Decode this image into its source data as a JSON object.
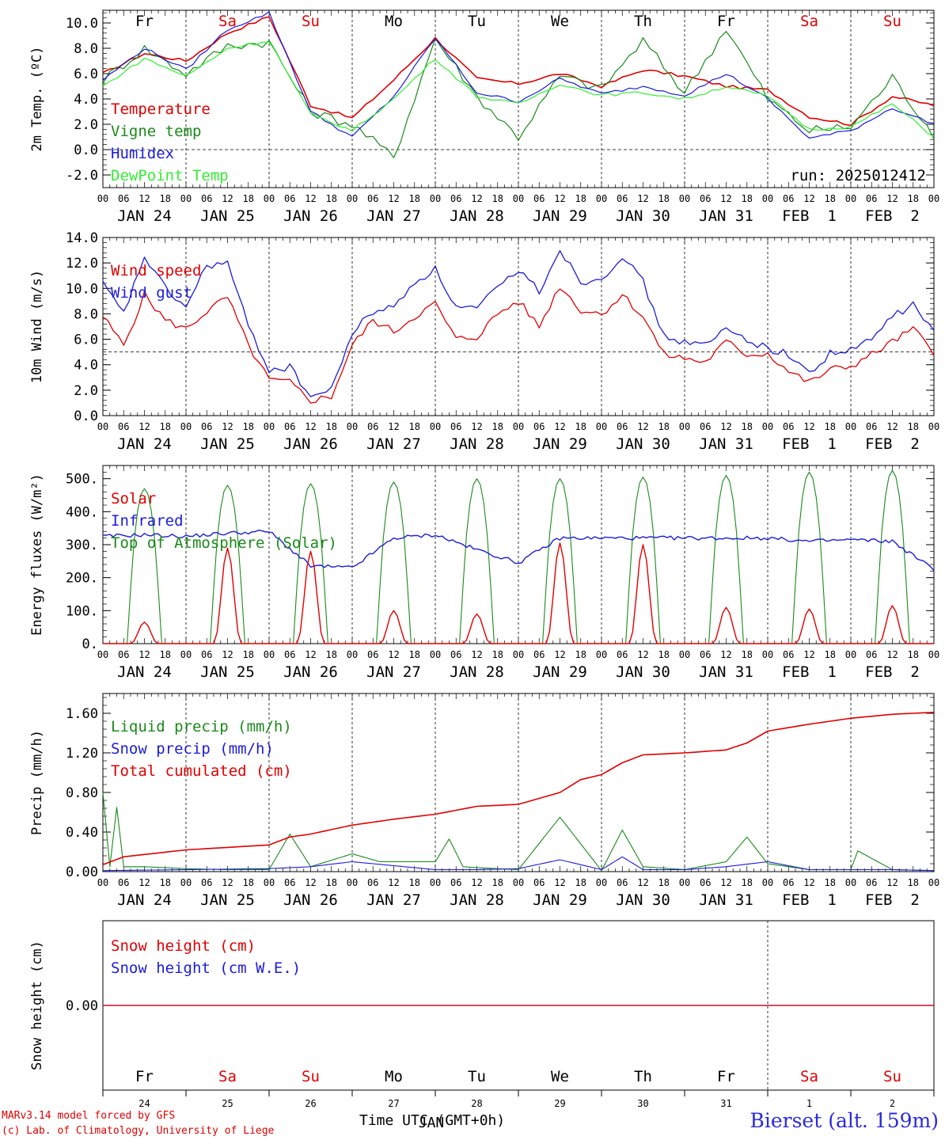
{
  "footer": {
    "credit_line1": "MARv3.14 model forced by GFS",
    "credit_line2": "(c) Lab. of Climatology, University of Liege",
    "xlabel": "Time UTC (GMT+0h)",
    "station": "Bierset (alt. 159m)"
  },
  "colors": {
    "red": "#e00000",
    "green": "#1a8a1a",
    "blue": "#1c1cd8",
    "lightgreen": "#33ee33"
  },
  "chart_data": [
    {
      "type": "line",
      "ylabel": "2m Temp. (ºC)",
      "ylim": [
        -3,
        11
      ],
      "yticks": [
        "10.0",
        "8.0",
        "6.0",
        "4.0",
        "2.0",
        "0.0",
        "-2.0"
      ],
      "ytick_values": [
        10,
        8,
        6,
        4,
        2,
        0,
        -2
      ],
      "ref_line": 0,
      "annotation": "run: 2025012412",
      "day_labels": [
        "Fr",
        "Sa",
        "Su",
        "Mo",
        "Tu",
        "We",
        "Th",
        "Fr",
        "Sa",
        "Su"
      ],
      "day_label_colors": [
        "black",
        "red",
        "red",
        "black",
        "black",
        "black",
        "black",
        "black",
        "red",
        "red"
      ],
      "date_labels": [
        "JAN 24",
        "JAN 25",
        "JAN 26",
        "JAN 27",
        "JAN 28",
        "JAN 29",
        "JAN 30",
        "JAN 31",
        "FEB  1",
        "FEB  2"
      ],
      "hour_labels": [
        "00",
        "06",
        "12",
        "18"
      ],
      "x_hours_total": 240,
      "series": [
        {
          "name": "Temperature",
          "color": "red",
          "x": [
            0,
            12,
            24,
            36,
            48,
            60,
            72,
            84,
            96,
            108,
            120,
            132,
            144,
            156,
            168,
            180,
            192,
            204,
            216,
            228,
            240
          ],
          "values": [
            6.0,
            7.6,
            7.0,
            9.2,
            10.5,
            3.5,
            2.5,
            5.5,
            8.8,
            5.6,
            5.2,
            6.0,
            5.0,
            6.3,
            5.8,
            5.0,
            4.7,
            2.6,
            2.0,
            4.2,
            3.5
          ]
        },
        {
          "name": "Vigne temp",
          "color": "green",
          "x": [
            0,
            12,
            24,
            36,
            48,
            60,
            72,
            84,
            96,
            108,
            120,
            132,
            144,
            156,
            168,
            180,
            192,
            204,
            216,
            228,
            240
          ],
          "values": [
            5.5,
            8.0,
            6.0,
            8.2,
            8.5,
            3.0,
            2.0,
            -0.6,
            8.8,
            4.2,
            1.0,
            5.8,
            4.8,
            8.6,
            4.5,
            9.6,
            4.0,
            1.5,
            1.8,
            5.7,
            1.2
          ]
        },
        {
          "name": "Humidex",
          "color": "blue",
          "x": [
            0,
            12,
            24,
            36,
            48,
            60,
            72,
            84,
            96,
            108,
            120,
            132,
            144,
            156,
            168,
            180,
            192,
            204,
            216,
            228,
            240
          ],
          "values": [
            5.5,
            8.0,
            6.3,
            9.5,
            10.8,
            3.0,
            1.0,
            4.2,
            8.8,
            4.5,
            3.8,
            5.6,
            4.4,
            5.0,
            4.3,
            6.0,
            4.0,
            0.9,
            1.5,
            3.3,
            2.0
          ]
        },
        {
          "name": "DewPoint Temp",
          "color": "lightgreen",
          "x": [
            0,
            12,
            24,
            36,
            48,
            60,
            72,
            84,
            96,
            108,
            120,
            132,
            144,
            156,
            168,
            180,
            192,
            204,
            216,
            228,
            240
          ],
          "values": [
            5.0,
            7.2,
            5.8,
            8.0,
            8.6,
            2.8,
            1.5,
            4.0,
            7.2,
            4.2,
            3.6,
            5.2,
            4.3,
            4.5,
            4.0,
            5.0,
            4.2,
            1.6,
            1.8,
            3.6,
            1.0
          ]
        }
      ]
    },
    {
      "type": "line",
      "ylabel": "10m Wind (m/s)",
      "ylim": [
        0,
        14
      ],
      "yticks": [
        "14.0",
        "12.0",
        "10.0",
        "8.0",
        "6.0",
        "4.0",
        "2.0",
        "0.0"
      ],
      "ytick_values": [
        14,
        12,
        10,
        8,
        6,
        4,
        2,
        0
      ],
      "ref_line": 5,
      "date_labels": [
        "JAN 24",
        "JAN 25",
        "JAN 26",
        "JAN 27",
        "JAN 28",
        "JAN 29",
        "JAN 30",
        "JAN 31",
        "FEB  1",
        "FEB  2"
      ],
      "hour_labels": [
        "00",
        "06",
        "12",
        "18"
      ],
      "x_hours_total": 240,
      "series": [
        {
          "name": "Wind speed",
          "color": "red",
          "x": [
            0,
            6,
            12,
            18,
            24,
            30,
            36,
            42,
            48,
            54,
            60,
            66,
            72,
            78,
            84,
            90,
            96,
            102,
            108,
            114,
            120,
            126,
            132,
            138,
            144,
            150,
            156,
            162,
            168,
            174,
            180,
            186,
            192,
            198,
            204,
            210,
            216,
            222,
            228,
            234,
            240
          ],
          "values": [
            7.8,
            5.5,
            9.5,
            7.5,
            6.8,
            8.2,
            9.3,
            5.5,
            2.8,
            2.6,
            1.2,
            1.5,
            5.5,
            7.5,
            6.6,
            7.8,
            8.8,
            6.0,
            6.2,
            8.0,
            9.0,
            7.0,
            10.2,
            8.3,
            8.0,
            9.5,
            7.8,
            4.8,
            4.5,
            4.2,
            5.8,
            4.8,
            4.9,
            3.5,
            2.6,
            3.6,
            3.9,
            4.8,
            5.8,
            6.8,
            5.0
          ]
        },
        {
          "name": "Wind gust",
          "color": "blue",
          "x": [
            0,
            6,
            12,
            18,
            24,
            30,
            36,
            42,
            48,
            54,
            60,
            66,
            72,
            78,
            84,
            90,
            96,
            102,
            108,
            114,
            120,
            126,
            132,
            138,
            144,
            150,
            156,
            162,
            168,
            174,
            180,
            186,
            192,
            198,
            204,
            210,
            216,
            222,
            228,
            234,
            240
          ],
          "values": [
            10.3,
            8.0,
            12.5,
            10.0,
            8.5,
            11.8,
            12.0,
            7.0,
            3.6,
            3.8,
            1.5,
            2.0,
            6.5,
            8.2,
            8.5,
            10.5,
            11.5,
            8.5,
            8.4,
            10.0,
            11.5,
            9.8,
            13.1,
            10.5,
            10.8,
            12.6,
            10.5,
            6.2,
            5.8,
            5.5,
            6.8,
            6.0,
            5.3,
            4.8,
            3.3,
            4.9,
            5.1,
            6.0,
            7.8,
            8.7,
            6.6
          ]
        }
      ]
    },
    {
      "type": "line",
      "ylabel": "Energy fluxes (W/m²)",
      "ylim": [
        0,
        540
      ],
      "yticks": [
        "500.",
        "400.",
        "300.",
        "200.",
        "100.",
        "0."
      ],
      "ytick_values": [
        500,
        400,
        300,
        200,
        100,
        0
      ],
      "date_labels": [
        "JAN 24",
        "JAN 25",
        "JAN 26",
        "JAN 27",
        "JAN 28",
        "JAN 29",
        "JAN 30",
        "JAN 31",
        "FEB  1",
        "FEB  2"
      ],
      "hour_labels": [
        "00",
        "06",
        "12",
        "18"
      ],
      "x_hours_total": 240,
      "series": [
        {
          "name": "Solar",
          "color": "red",
          "daily_peak": [
            65,
            290,
            280,
            100,
            90,
            305,
            300,
            110,
            105,
            115
          ]
        },
        {
          "name": "Infrared",
          "color": "blue",
          "x": [
            0,
            12,
            24,
            36,
            48,
            60,
            72,
            84,
            96,
            108,
            120,
            132,
            144,
            156,
            168,
            180,
            192,
            204,
            216,
            228,
            240
          ],
          "values": [
            325,
            330,
            325,
            335,
            340,
            235,
            230,
            320,
            330,
            285,
            245,
            320,
            320,
            320,
            320,
            320,
            320,
            310,
            315,
            310,
            225
          ]
        },
        {
          "name": "Top of Atmosphere (Solar)",
          "color": "green",
          "daily_peak": [
            470,
            480,
            485,
            490,
            500,
            500,
            505,
            510,
            520,
            525
          ]
        }
      ]
    },
    {
      "type": "line",
      "ylabel": "Precip (mm/h)",
      "ylim": [
        0,
        1.8
      ],
      "yticks": [
        "1.60",
        "1.20",
        "0.80",
        "0.40",
        "0.00"
      ],
      "ytick_values": [
        1.6,
        1.2,
        0.8,
        0.4,
        0
      ],
      "date_labels": [
        "JAN 24",
        "JAN 25",
        "JAN 26",
        "JAN 27",
        "JAN 28",
        "JAN 29",
        "JAN 30",
        "JAN 31",
        "FEB  1",
        "FEB  2"
      ],
      "hour_labels": [
        "00",
        "06",
        "12",
        "18"
      ],
      "x_hours_total": 240,
      "series": [
        {
          "name": "Liquid precip (mm/h)",
          "color": "green",
          "x": [
            0,
            2,
            4,
            6,
            12,
            24,
            36,
            48,
            54,
            60,
            72,
            80,
            96,
            100,
            104,
            108,
            120,
            132,
            144,
            150,
            156,
            168,
            180,
            186,
            192,
            204,
            216,
            218,
            228,
            240
          ],
          "values": [
            0.8,
            0.05,
            0.65,
            0.05,
            0.05,
            0.03,
            0.02,
            0.02,
            0.38,
            0.05,
            0.18,
            0.1,
            0.1,
            0.33,
            0.05,
            0.04,
            0.02,
            0.55,
            0.01,
            0.42,
            0.05,
            0.02,
            0.1,
            0.35,
            0.08,
            0.02,
            0.02,
            0.21,
            0.02,
            0.01
          ]
        },
        {
          "name": "Snow precip (mm/h)",
          "color": "blue",
          "x": [
            0,
            24,
            48,
            60,
            72,
            96,
            108,
            120,
            132,
            144,
            150,
            156,
            168,
            180,
            192,
            204,
            216,
            228,
            240
          ],
          "values": [
            0.01,
            0.02,
            0.03,
            0.05,
            0.1,
            0.02,
            0.02,
            0.03,
            0.12,
            0.02,
            0.15,
            0.02,
            0.02,
            0.05,
            0.1,
            0.02,
            0.02,
            0.02,
            0.01
          ]
        },
        {
          "name": "Total cumulated (cm)",
          "color": "red",
          "x": [
            0,
            6,
            24,
            48,
            54,
            60,
            72,
            84,
            96,
            108,
            120,
            132,
            138,
            144,
            150,
            156,
            168,
            180,
            186,
            192,
            204,
            216,
            228,
            240
          ],
          "values": [
            0.07,
            0.15,
            0.22,
            0.27,
            0.35,
            0.38,
            0.47,
            0.53,
            0.58,
            0.66,
            0.68,
            0.8,
            0.93,
            0.98,
            1.1,
            1.18,
            1.2,
            1.23,
            1.3,
            1.42,
            1.49,
            1.55,
            1.59,
            1.61
          ]
        }
      ]
    },
    {
      "type": "line",
      "ylabel": "Snow height (cm)",
      "yticks": [
        "0.00"
      ],
      "day_labels": [
        "Fr",
        "Sa",
        "Su",
        "Mo",
        "Tu",
        "We",
        "Th",
        "Fr",
        "Sa",
        "Su"
      ],
      "day_label_colors": [
        "black",
        "red",
        "red",
        "black",
        "black",
        "black",
        "black",
        "black",
        "red",
        "red"
      ],
      "date_numbers": [
        "24",
        "25",
        "26",
        "27",
        "28",
        "29",
        "30",
        "31",
        "1",
        "2"
      ],
      "month_label": "JAN",
      "series": [
        {
          "name": "Snow height (cm)",
          "color": "red",
          "values": [
            0,
            0
          ]
        },
        {
          "name": "Snow height (cm W.E.)",
          "color": "blue",
          "values": [
            0,
            0
          ]
        }
      ]
    }
  ]
}
